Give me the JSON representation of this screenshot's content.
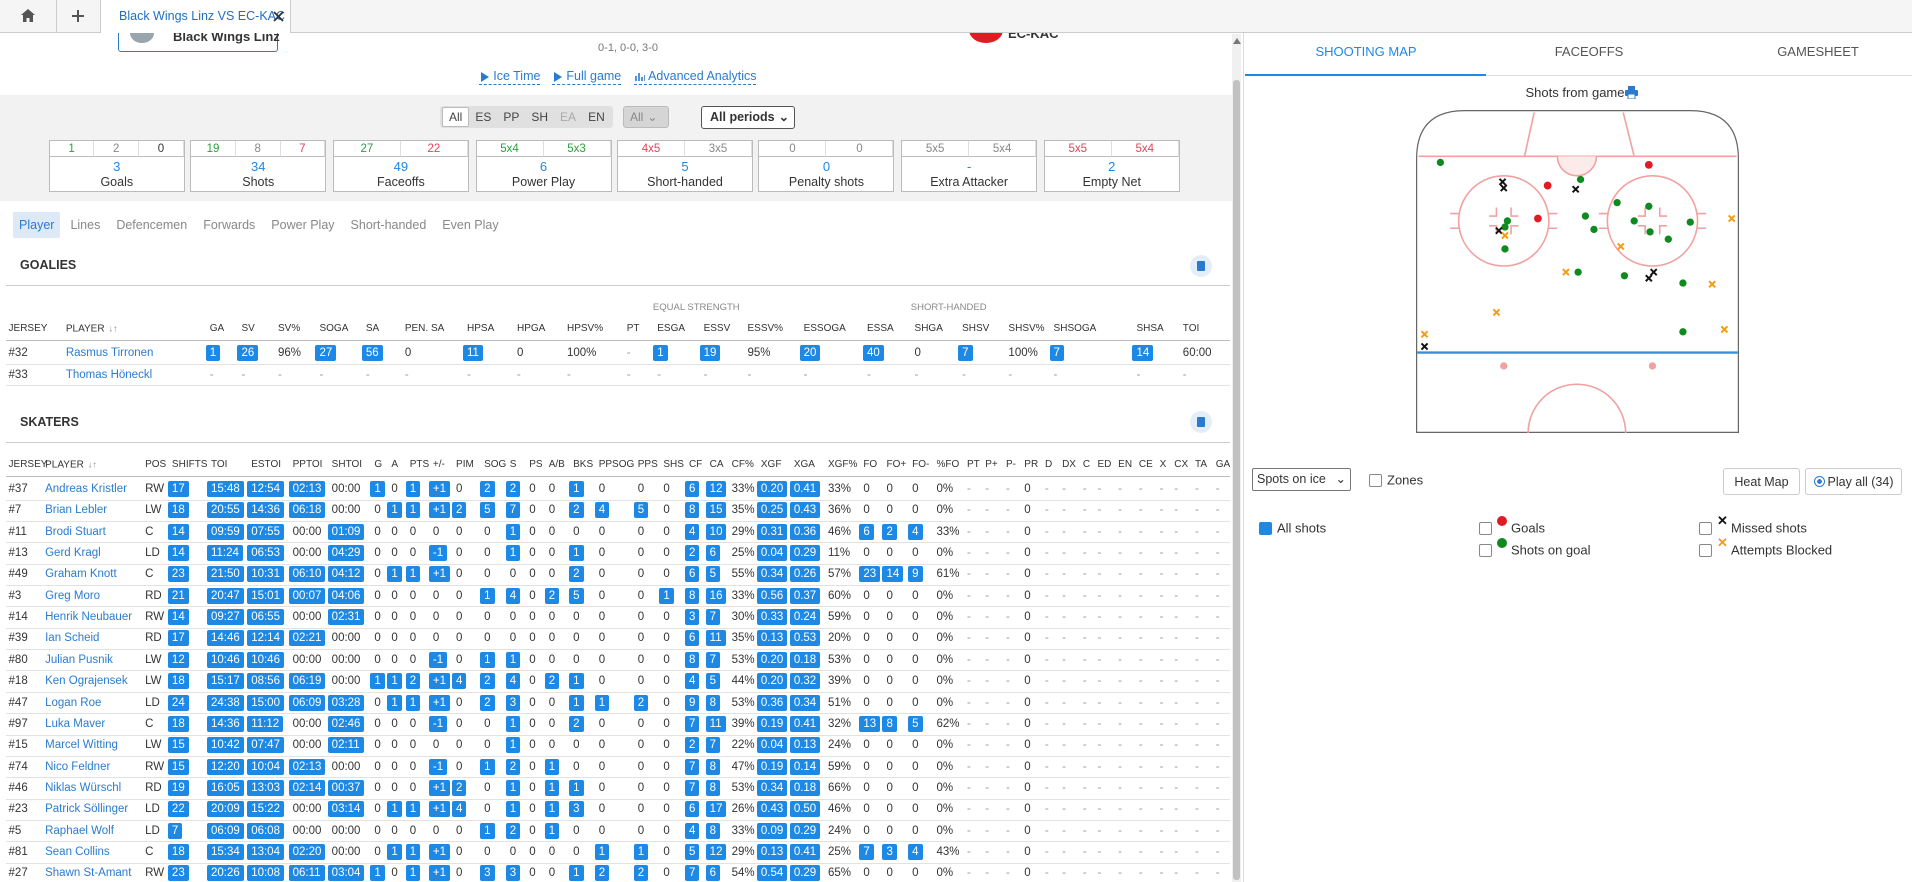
{
  "top_bar": {
    "tab": "Black Wings Linz VS EC-KAC"
  },
  "header": {
    "home_team": "Black Wings Linz",
    "away_team": "EC-KAC",
    "period_scores": "0-1, 0-0, 3-0",
    "links": [
      "Ice Time",
      "Full game",
      "Advanced Analytics"
    ]
  },
  "filters": {
    "situations": [
      "All",
      "ES",
      "PP",
      "SH",
      "EA",
      "EN"
    ],
    "team": "All",
    "periods": "All periods"
  },
  "summary": [
    {
      "label": "Goals",
      "total": 3,
      "parts": [
        {
          "text": 1,
          "color": "#2e9e3e"
        },
        {
          "text": 2,
          "color": "#888888"
        },
        {
          "text": 0,
          "color": "#333333"
        }
      ]
    },
    {
      "label": "Shots",
      "total": 34,
      "parts": [
        {
          "text": 19,
          "color": "#2e9e3e"
        },
        {
          "text": 8,
          "color": "#888888"
        },
        {
          "text": 7,
          "color": "#e0455a"
        }
      ]
    },
    {
      "label": "Faceoffs",
      "total": 49,
      "parts": [
        {
          "text": 27,
          "color": "#2e9e3e"
        },
        {
          "text": 22,
          "color": "#e0455a"
        }
      ]
    },
    {
      "label": "Power Play",
      "total": 6,
      "parts": [
        {
          "text": "5x4",
          "color": "#2e9e3e"
        },
        {
          "text": "5x3",
          "color": "#2e9e3e"
        }
      ]
    },
    {
      "label": "Short-handed",
      "total": 5,
      "parts": [
        {
          "text": "4x5",
          "color": "#e0455a"
        },
        {
          "text": "3x5",
          "color": "#888888"
        }
      ]
    },
    {
      "label": "Penalty shots",
      "total": 0,
      "parts": [
        {
          "text": 0,
          "color": "#888888"
        },
        {
          "text": 0,
          "color": "#888888"
        }
      ]
    },
    {
      "label": "Extra Attacker",
      "total": "-",
      "parts": [
        {
          "text": "5x5",
          "color": "#888888"
        },
        {
          "text": "5x4",
          "color": "#888888"
        }
      ]
    },
    {
      "label": "Empty Net",
      "total": 2,
      "parts": [
        {
          "text": "5x5",
          "color": "#e0455a"
        },
        {
          "text": "5x4",
          "color": "#e0455a"
        }
      ]
    }
  ],
  "views": [
    "Player",
    "Lines",
    "Defencemen",
    "Forwards",
    "Power Play",
    "Short-handed",
    "Even Play"
  ],
  "goalies": {
    "title": "GOALIES",
    "groups": [
      "EQUAL STRENGTH",
      "SHORT-HANDED"
    ],
    "columns": [
      "JERSEY",
      "PLAYER",
      "GA",
      "SV",
      "SV%",
      "SOGA",
      "SA",
      "PEN. SA",
      "HPSA",
      "HPGA",
      "HPSV%",
      "PT",
      "ESGA",
      "ESSV",
      "ESSV%",
      "ESSOGA",
      "ESSA",
      "SHGA",
      "SHSV",
      "SHSV%",
      "SHSOGA",
      "SHSA",
      "TOI"
    ],
    "rows": [
      [
        "#32",
        "Rasmus Tirronen",
        1,
        26,
        "96%",
        27,
        56,
        0,
        11,
        0,
        "100%",
        "-",
        1,
        19,
        "95%",
        20,
        40,
        0,
        7,
        "100%",
        7,
        14,
        "60:00"
      ],
      [
        "#33",
        "Thomas Höneckl",
        "-",
        "-",
        "-",
        "-",
        "-",
        "-",
        "-",
        "-",
        "-",
        "-",
        "-",
        "-",
        "-",
        "-",
        "-",
        "-",
        "-",
        "-",
        "-",
        "-",
        "-"
      ]
    ]
  },
  "skaters": {
    "title": "SKATERS",
    "columns": [
      "JERSEY",
      "PLAYER",
      "POS",
      "SHIFTS",
      "TOI",
      "ESTOI",
      "PPTOI",
      "SHTOI",
      "G",
      "A",
      "PTS",
      "+/-",
      "PIM",
      "SOG",
      "S",
      "PS",
      "A/B",
      "BKS",
      "PPSOG",
      "PPS",
      "SHS",
      "CF",
      "CA",
      "CF%",
      "XGF",
      "XGA",
      "XGF%",
      "FO",
      "FO+",
      "FO-",
      "%FO",
      "PT",
      "P+",
      "P-",
      "PR",
      "D",
      "DX",
      "C",
      "ED",
      "EN",
      "CE",
      "X",
      "CX",
      "TA",
      "GA"
    ],
    "rows": [
      [
        "#37",
        "Andreas Kristler",
        "RW",
        17,
        "15:48",
        "12:54",
        "02:13",
        "00:00",
        1,
        0,
        1,
        "+1",
        0,
        2,
        2,
        0,
        0,
        1,
        0,
        0,
        0,
        6,
        12,
        "33%",
        "0.20",
        "0.41",
        "33%",
        0,
        0,
        0,
        "0%",
        "-",
        "-",
        "-",
        0,
        "-",
        "-",
        "-",
        "-",
        "-",
        "-",
        "-",
        "-",
        "-",
        "-"
      ],
      [
        "#7",
        "Brian Lebler",
        "LW",
        18,
        "20:55",
        "14:36",
        "06:18",
        "00:00",
        0,
        1,
        1,
        "+1",
        2,
        5,
        7,
        0,
        0,
        2,
        4,
        5,
        0,
        8,
        15,
        "35%",
        "0.25",
        "0.43",
        "36%",
        0,
        0,
        0,
        "0%",
        "-",
        "-",
        "-",
        0,
        "-",
        "-",
        "-",
        "-",
        "-",
        "-",
        "-",
        "-",
        "-",
        "-"
      ],
      [
        "#11",
        "Brodi Stuart",
        "C",
        14,
        "09:59",
        "07:55",
        "00:00",
        "01:09",
        0,
        0,
        0,
        0,
        0,
        0,
        1,
        0,
        0,
        0,
        0,
        0,
        0,
        4,
        10,
        "29%",
        "0.31",
        "0.36",
        "46%",
        6,
        2,
        4,
        "33%",
        "-",
        "-",
        "-",
        0,
        "-",
        "-",
        "-",
        "-",
        "-",
        "-",
        "-",
        "-",
        "-",
        "-"
      ],
      [
        "#13",
        "Gerd Kragl",
        "LD",
        14,
        "11:24",
        "06:53",
        "00:00",
        "04:29",
        0,
        0,
        0,
        -1,
        0,
        0,
        1,
        0,
        0,
        1,
        0,
        0,
        0,
        2,
        6,
        "25%",
        "0.04",
        "0.29",
        "11%",
        0,
        0,
        0,
        "0%",
        "-",
        "-",
        "-",
        0,
        "-",
        "-",
        "-",
        "-",
        "-",
        "-",
        "-",
        "-",
        "-",
        "-"
      ],
      [
        "#49",
        "Graham Knott",
        "C",
        23,
        "21:50",
        "10:31",
        "06:10",
        "04:12",
        0,
        1,
        1,
        "+1",
        0,
        0,
        0,
        0,
        0,
        2,
        0,
        0,
        0,
        6,
        5,
        "55%",
        "0.34",
        "0.26",
        "57%",
        23,
        14,
        9,
        "61%",
        "-",
        "-",
        "-",
        0,
        "-",
        "-",
        "-",
        "-",
        "-",
        "-",
        "-",
        "-",
        "-",
        "-"
      ],
      [
        "#3",
        "Greg Moro",
        "RD",
        21,
        "20:47",
        "15:01",
        "00:07",
        "04:06",
        0,
        0,
        0,
        0,
        0,
        1,
        4,
        0,
        2,
        5,
        0,
        0,
        1,
        8,
        16,
        "33%",
        "0.56",
        "0.37",
        "60%",
        0,
        0,
        0,
        "0%",
        "-",
        "-",
        "-",
        0,
        "-",
        "-",
        "-",
        "-",
        "-",
        "-",
        "-",
        "-",
        "-",
        "-"
      ],
      [
        "#14",
        "Henrik Neubauer",
        "RW",
        14,
        "09:27",
        "06:55",
        "00:00",
        "02:31",
        0,
        0,
        0,
        0,
        0,
        0,
        0,
        0,
        0,
        0,
        0,
        0,
        0,
        3,
        7,
        "30%",
        "0.33",
        "0.24",
        "59%",
        0,
        0,
        0,
        "0%",
        "-",
        "-",
        "-",
        0,
        "-",
        "-",
        "-",
        "-",
        "-",
        "-",
        "-",
        "-",
        "-",
        "-"
      ],
      [
        "#39",
        "Ian Scheid",
        "RD",
        17,
        "14:46",
        "12:14",
        "02:21",
        "00:00",
        0,
        0,
        0,
        0,
        0,
        0,
        0,
        0,
        0,
        0,
        0,
        0,
        0,
        6,
        11,
        "35%",
        "0.13",
        "0.53",
        "20%",
        0,
        0,
        0,
        "0%",
        "-",
        "-",
        "-",
        0,
        "-",
        "-",
        "-",
        "-",
        "-",
        "-",
        "-",
        "-",
        "-",
        "-"
      ],
      [
        "#80",
        "Julian Pusnik",
        "LW",
        12,
        "10:46",
        "10:46",
        "00:00",
        "00:00",
        0,
        0,
        0,
        -1,
        0,
        1,
        1,
        0,
        0,
        0,
        0,
        0,
        0,
        8,
        7,
        "53%",
        "0.20",
        "0.18",
        "53%",
        0,
        0,
        0,
        "0%",
        "-",
        "-",
        "-",
        0,
        "-",
        "-",
        "-",
        "-",
        "-",
        "-",
        "-",
        "-",
        "-",
        "-"
      ],
      [
        "#18",
        "Ken Ograjensek",
        "LW",
        18,
        "15:17",
        "08:56",
        "06:19",
        "00:00",
        1,
        1,
        2,
        "+1",
        4,
        2,
        4,
        0,
        2,
        1,
        0,
        0,
        0,
        4,
        5,
        "44%",
        "0.20",
        "0.32",
        "39%",
        0,
        0,
        0,
        "0%",
        "-",
        "-",
        "-",
        0,
        "-",
        "-",
        "-",
        "-",
        "-",
        "-",
        "-",
        "-",
        "-",
        "-"
      ],
      [
        "#47",
        "Logan Roe",
        "LD",
        24,
        "24:38",
        "15:00",
        "06:09",
        "03:28",
        0,
        1,
        1,
        "+1",
        0,
        2,
        3,
        0,
        0,
        1,
        1,
        2,
        0,
        9,
        8,
        "53%",
        "0.36",
        "0.34",
        "51%",
        0,
        0,
        0,
        "0%",
        "-",
        "-",
        "-",
        0,
        "-",
        "-",
        "-",
        "-",
        "-",
        "-",
        "-",
        "-",
        "-",
        "-"
      ],
      [
        "#97",
        "Luka Maver",
        "C",
        18,
        "14:36",
        "11:12",
        "00:00",
        "02:46",
        0,
        0,
        0,
        -1,
        0,
        0,
        1,
        0,
        0,
        2,
        0,
        0,
        0,
        7,
        11,
        "39%",
        "0.19",
        "0.41",
        "32%",
        13,
        8,
        5,
        "62%",
        "-",
        "-",
        "-",
        0,
        "-",
        "-",
        "-",
        "-",
        "-",
        "-",
        "-",
        "-",
        "-",
        "-"
      ],
      [
        "#15",
        "Marcel Witting",
        "LW",
        15,
        "10:42",
        "07:47",
        "00:00",
        "02:11",
        0,
        0,
        0,
        0,
        0,
        0,
        1,
        0,
        0,
        0,
        0,
        0,
        0,
        2,
        7,
        "22%",
        "0.04",
        "0.13",
        "24%",
        0,
        0,
        0,
        "0%",
        "-",
        "-",
        "-",
        0,
        "-",
        "-",
        "-",
        "-",
        "-",
        "-",
        "-",
        "-",
        "-",
        "-"
      ],
      [
        "#74",
        "Nico Feldner",
        "RW",
        15,
        "12:20",
        "10:04",
        "02:13",
        "00:00",
        0,
        0,
        0,
        -1,
        0,
        1,
        2,
        0,
        1,
        0,
        0,
        0,
        0,
        7,
        8,
        "47%",
        "0.19",
        "0.14",
        "59%",
        0,
        0,
        0,
        "0%",
        "-",
        "-",
        "-",
        0,
        "-",
        "-",
        "-",
        "-",
        "-",
        "-",
        "-",
        "-",
        "-",
        "-"
      ],
      [
        "#46",
        "Niklas Würschl",
        "RD",
        19,
        "16:05",
        "13:03",
        "02:14",
        "00:37",
        0,
        0,
        0,
        "+1",
        2,
        0,
        1,
        0,
        1,
        1,
        0,
        0,
        0,
        7,
        8,
        "53%",
        "0.34",
        "0.18",
        "66%",
        0,
        0,
        0,
        "0%",
        "-",
        "-",
        "-",
        0,
        "-",
        "-",
        "-",
        "-",
        "-",
        "-",
        "-",
        "-",
        "-",
        "-"
      ],
      [
        "#23",
        "Patrick Söllinger",
        "LD",
        22,
        "20:09",
        "15:22",
        "00:00",
        "03:14",
        0,
        1,
        1,
        "+1",
        4,
        0,
        1,
        0,
        1,
        3,
        0,
        0,
        0,
        6,
        17,
        "26%",
        "0.43",
        "0.50",
        "46%",
        0,
        0,
        0,
        "0%",
        "-",
        "-",
        "-",
        0,
        "-",
        "-",
        "-",
        "-",
        "-",
        "-",
        "-",
        "-",
        "-",
        "-"
      ],
      [
        "#5",
        "Raphael Wolf",
        "LD",
        7,
        "06:09",
        "06:08",
        "00:00",
        "00:00",
        0,
        0,
        0,
        0,
        0,
        1,
        2,
        0,
        1,
        0,
        0,
        0,
        0,
        4,
        8,
        "33%",
        "0.09",
        "0.29",
        "24%",
        0,
        0,
        0,
        "0%",
        "-",
        "-",
        "-",
        0,
        "-",
        "-",
        "-",
        "-",
        "-",
        "-",
        "-",
        "-",
        "-",
        "-"
      ],
      [
        "#81",
        "Sean Collins",
        "C",
        18,
        "15:34",
        "13:04",
        "02:20",
        "00:00",
        0,
        1,
        1,
        "+1",
        0,
        0,
        0,
        0,
        0,
        0,
        1,
        1,
        0,
        5,
        12,
        "29%",
        "0.13",
        "0.41",
        "25%",
        7,
        3,
        4,
        "43%",
        "-",
        "-",
        "-",
        0,
        "-",
        "-",
        "-",
        "-",
        "-",
        "-",
        "-",
        "-",
        "-",
        "-"
      ],
      [
        "#27",
        "Shawn St-Amant",
        "RW",
        23,
        "20:26",
        "10:08",
        "06:11",
        "03:04",
        1,
        0,
        1,
        "+1",
        0,
        3,
        3,
        0,
        0,
        1,
        2,
        2,
        0,
        7,
        6,
        "54%",
        "0.54",
        "0.29",
        "65%",
        0,
        0,
        0,
        "0%",
        "-",
        "-",
        "-",
        0,
        "-",
        "-",
        "-",
        "-",
        "-",
        "-",
        "-",
        "-",
        "-",
        "-"
      ]
    ]
  },
  "shooting_map": {
    "tabs": [
      "SHOOTING MAP",
      "FACEOFFS",
      "GAMESHEET"
    ],
    "title": "Shots from game",
    "view_select": "Spots on ice",
    "zones": "Zones",
    "buttons": [
      "Heat Map",
      "Play all (34)"
    ],
    "filters": [
      {
        "label": "All shots",
        "checked": true
      },
      {
        "label": "Goals",
        "checked": false
      },
      {
        "label": "Shots on goal",
        "checked": false
      },
      {
        "label": "Missed shots",
        "checked": false
      },
      {
        "label": "Attempts Blocked",
        "checked": false
      }
    ]
  }
}
